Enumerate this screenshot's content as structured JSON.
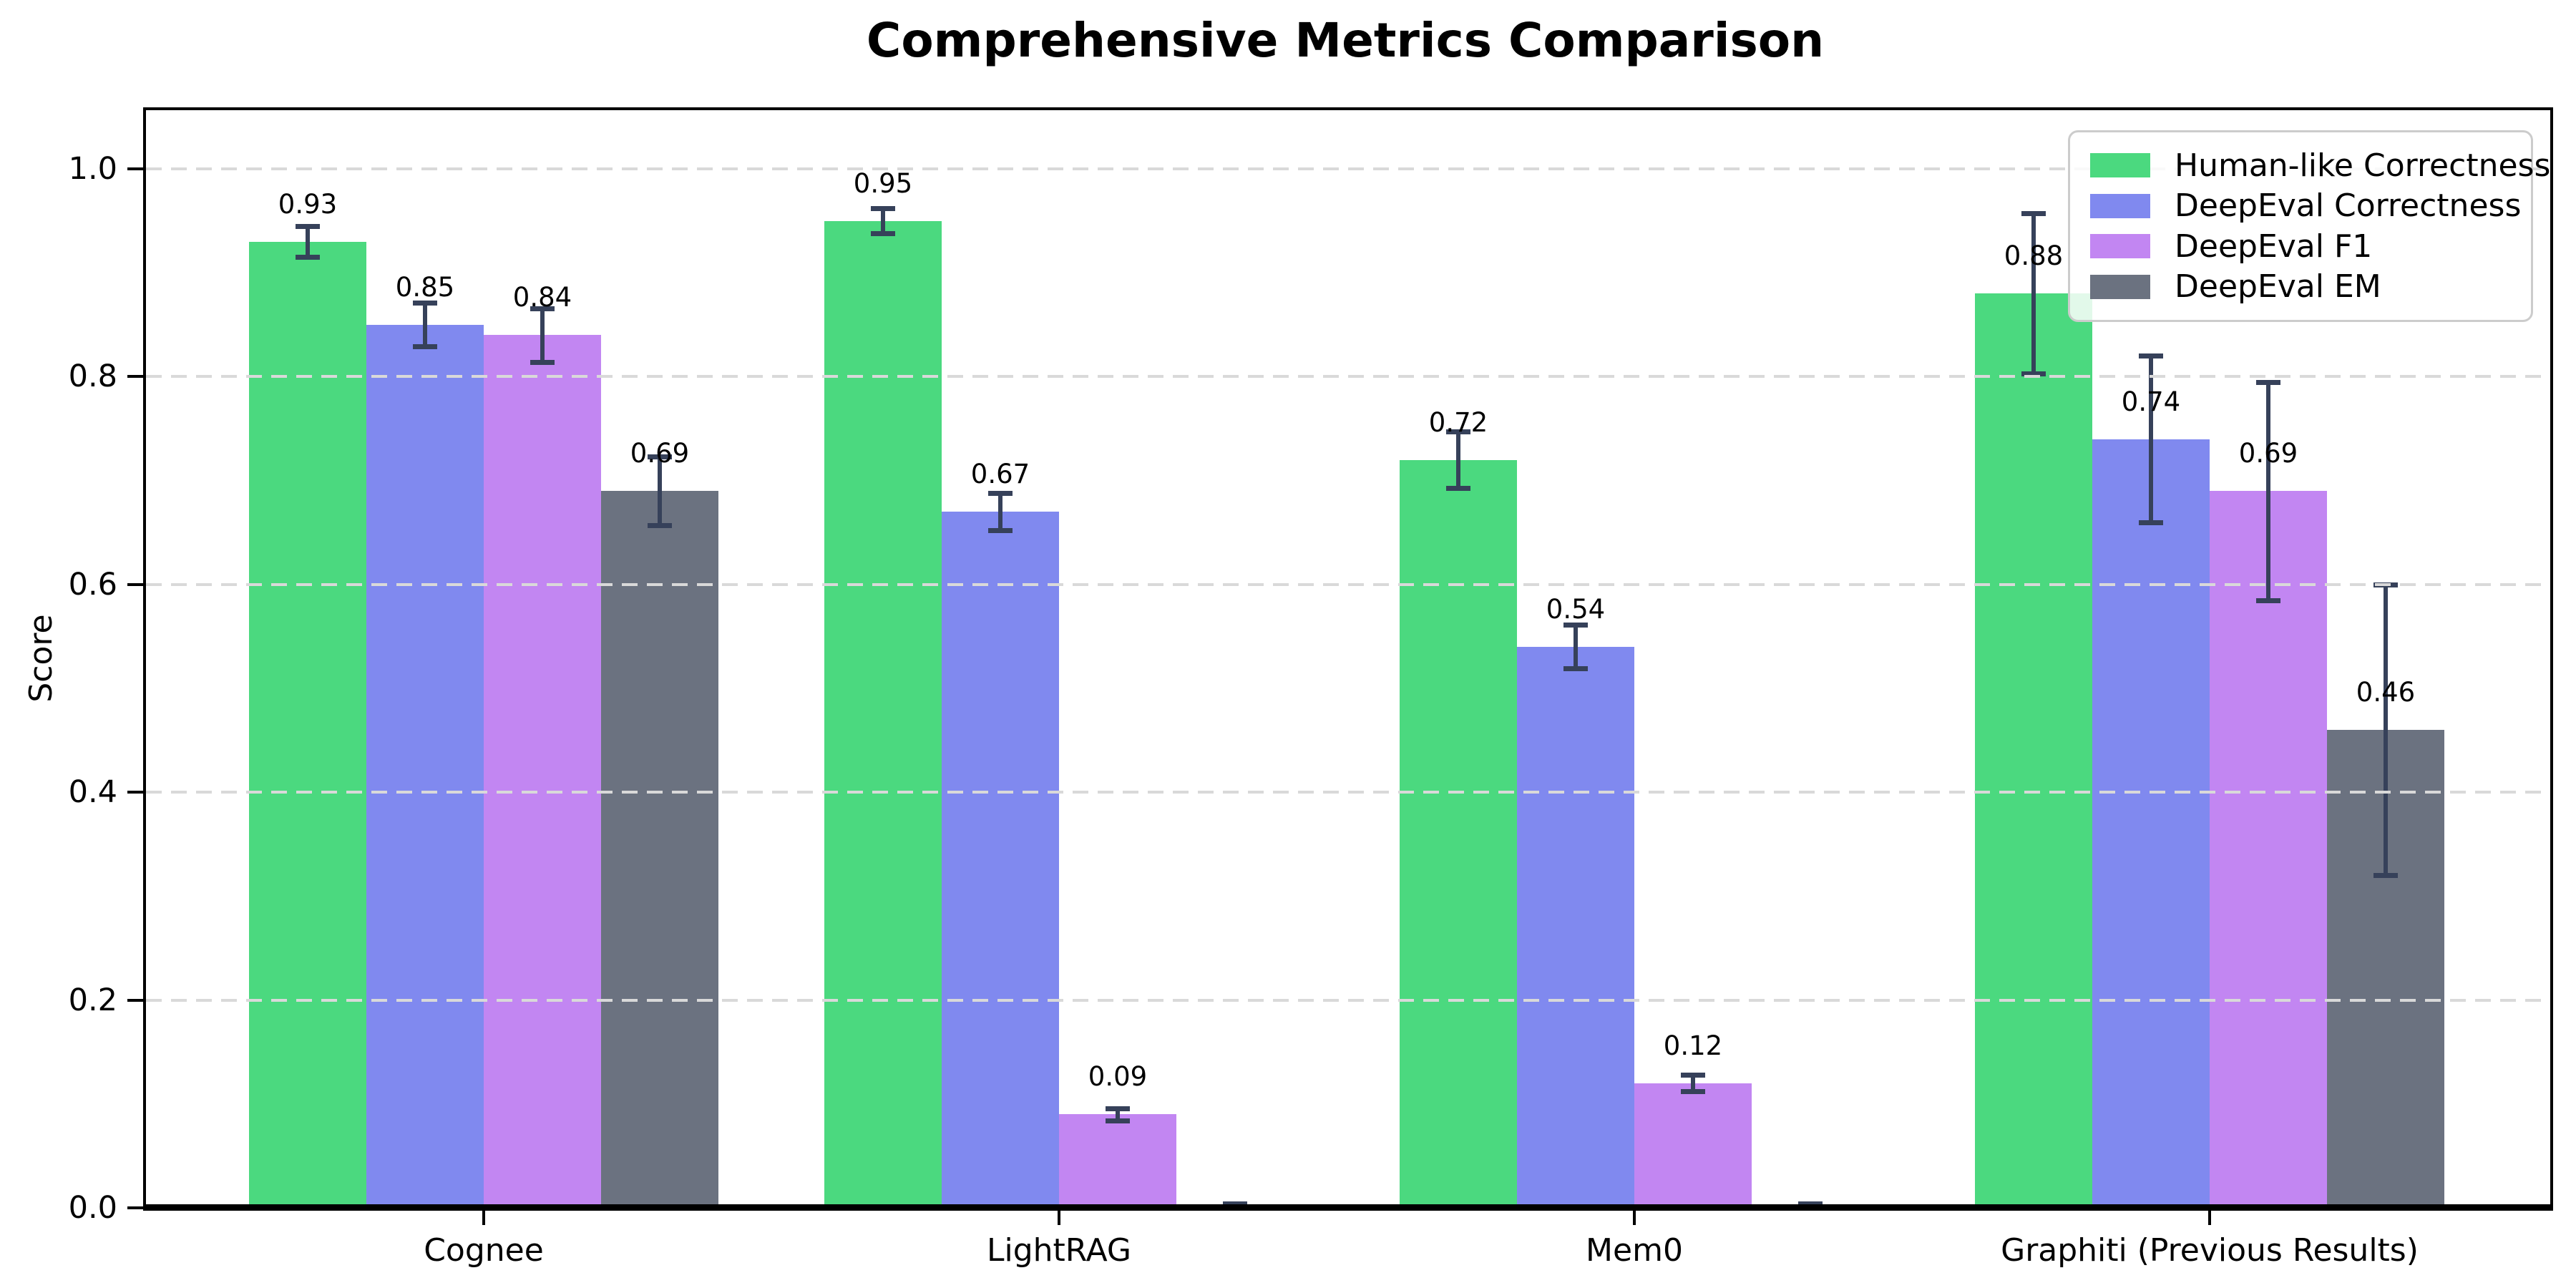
{
  "figure": {
    "title": "Comprehensive Metrics Comparison",
    "ylabel": "Score"
  },
  "chart_data": {
    "type": "bar",
    "title": "Comprehensive Metrics Comparison",
    "xlabel": "",
    "ylabel": "Score",
    "categories": [
      "Cognee",
      "LightRAG",
      "Mem0",
      "Graphiti (Previous Results)"
    ],
    "series": [
      {
        "name": "Human-like Correctness",
        "color": "#4bd97f",
        "values": [
          0.93,
          0.95,
          0.72,
          0.88
        ],
        "errors": [
          0.015,
          0.012,
          0.027,
          0.077
        ],
        "labels": [
          "0.93",
          "0.95",
          "0.72",
          "0.88"
        ]
      },
      {
        "name": "DeepEval Correctness",
        "color": "#8089ef",
        "values": [
          0.85,
          0.67,
          0.54,
          0.74
        ],
        "errors": [
          0.021,
          0.018,
          0.021,
          0.08
        ],
        "labels": [
          "0.85",
          "0.67",
          "0.54",
          "0.74"
        ]
      },
      {
        "name": "DeepEval F1",
        "color": "#c286f2",
        "values": [
          0.84,
          0.09,
          0.12,
          0.69
        ],
        "errors": [
          0.026,
          0.006,
          0.008,
          0.105
        ],
        "labels": [
          "0.84",
          "0.09",
          "0.12",
          "0.69"
        ]
      },
      {
        "name": "DeepEval EM",
        "color": "#6b7280",
        "values": [
          0.69,
          0.0,
          0.0,
          0.46
        ],
        "errors": [
          0.033,
          0.004,
          0.004,
          0.14
        ],
        "labels": [
          "0.69",
          null,
          null,
          "0.46"
        ]
      }
    ],
    "ylim": [
      0,
      1.0565
    ],
    "yticks": [
      0.0,
      0.2,
      0.4,
      0.6,
      0.8,
      1.0
    ],
    "ytick_labels": [
      "0.0",
      "0.2",
      "0.4",
      "0.6",
      "0.8",
      "1.0"
    ],
    "grid": {
      "axis": "y",
      "style": "dashed",
      "on_top_of_bars": true
    },
    "legend": {
      "position": "upper right",
      "entries": [
        "Human-like Correctness",
        "DeepEval Correctness",
        "DeepEval F1",
        "DeepEval EM"
      ]
    }
  },
  "style": {
    "error_bar_color": "#36415a",
    "grid_color": "#d9d9d9",
    "axis_color": "#000000",
    "legend_border_color": "#cccccc",
    "background": "#ffffff"
  }
}
